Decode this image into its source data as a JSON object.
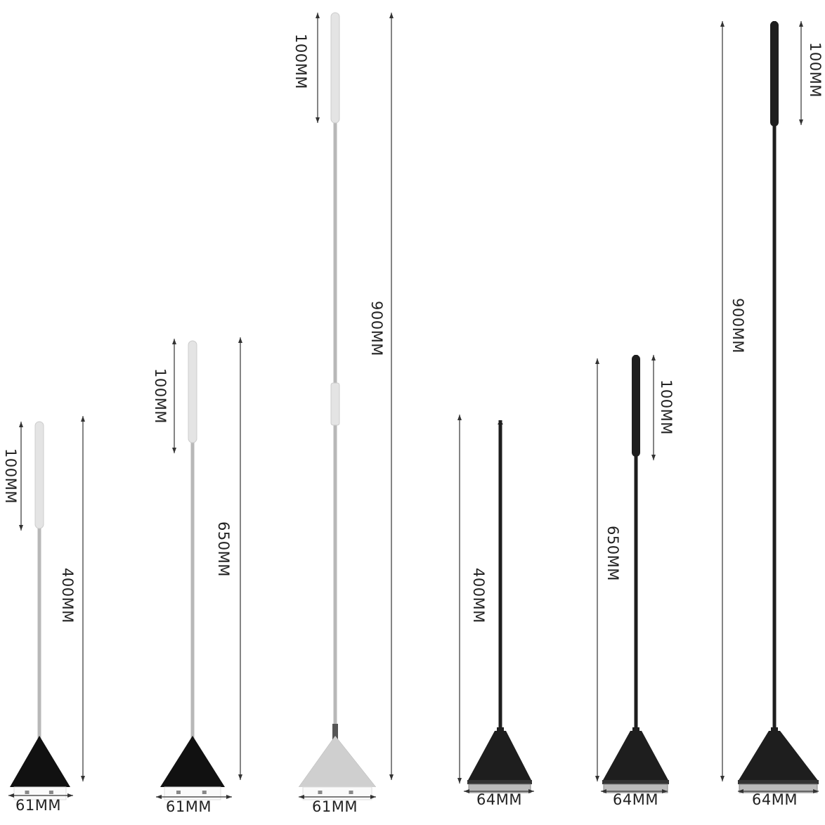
{
  "products": [
    {
      "finish": "silver",
      "length_label": "400MM",
      "handle_label": "100MM",
      "blade_label": "61MM"
    },
    {
      "finish": "silver",
      "length_label": "650MM",
      "handle_label": "100MM",
      "blade_label": "61MM"
    },
    {
      "finish": "silver",
      "length_label": "900MM",
      "handle_label": "100MM",
      "blade_label": "61MM"
    },
    {
      "finish": "black",
      "length_label": "400MM",
      "blade_label": "64MM"
    },
    {
      "finish": "black",
      "length_label": "650MM",
      "handle_label": "100MM",
      "blade_label": "64MM"
    },
    {
      "finish": "black",
      "length_label": "900MM",
      "handle_label": "100MM",
      "blade_label": "64MM"
    }
  ],
  "colors": {
    "silver_rod": "#b8b8b8",
    "silver_handle": "#e4e4e4",
    "black": "#1e1e1e",
    "blade": "#111111",
    "text": "#222222"
  }
}
